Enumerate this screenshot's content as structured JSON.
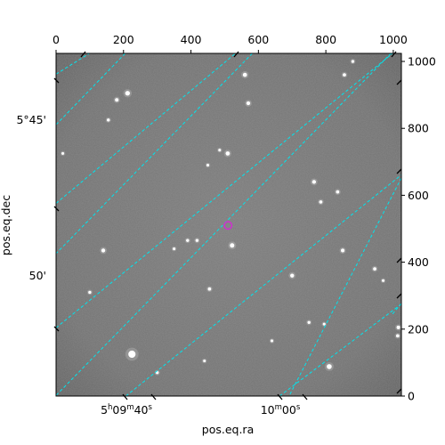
{
  "figure": {
    "x_axis_label": "pos.eq.ra",
    "y_axis_label": "pos.eq.dec",
    "top_ticks": [
      "0",
      "200",
      "400",
      "600",
      "800",
      "1000"
    ],
    "right_ticks": [
      "0",
      "200",
      "400",
      "600",
      "800",
      "1000"
    ],
    "ra_ticks": [
      {
        "pre": "5",
        "h": "h",
        "mid": "09",
        "m": "m",
        "post": "40",
        "s": "s"
      },
      {
        "pre": "10",
        "h": "",
        "mid": "",
        "m": "m",
        "post": "00",
        "s": "s"
      }
    ],
    "dec_ticks": [
      "5°45'",
      "50'"
    ],
    "grid_color": "#00e5ee",
    "marker_color": "#cc33cc"
  },
  "chart_data": {
    "type": "scatter",
    "title": "",
    "xlabel": "pos.eq.ra",
    "ylabel": "pos.eq.dec",
    "pixel_xlim": [
      0,
      1024
    ],
    "pixel_ylim": [
      0,
      1024
    ],
    "grid": true,
    "background": "grayscale sky image",
    "stars": [
      {
        "x": 225,
        "y": 125,
        "mag": 1.0
      },
      {
        "x": 810,
        "y": 88,
        "mag": 0.6
      },
      {
        "x": 522,
        "y": 450,
        "mag": 0.5
      },
      {
        "x": 140,
        "y": 435,
        "mag": 0.4
      },
      {
        "x": 509,
        "y": 725,
        "mag": 0.45
      },
      {
        "x": 212,
        "y": 905,
        "mag": 0.55
      },
      {
        "x": 180,
        "y": 885,
        "mag": 0.35
      },
      {
        "x": 560,
        "y": 960,
        "mag": 0.45
      },
      {
        "x": 570,
        "y": 875,
        "mag": 0.4
      },
      {
        "x": 765,
        "y": 640,
        "mag": 0.4
      },
      {
        "x": 700,
        "y": 360,
        "mag": 0.4
      },
      {
        "x": 850,
        "y": 435,
        "mag": 0.35
      },
      {
        "x": 1015,
        "y": 205,
        "mag": 0.35
      },
      {
        "x": 1013,
        "y": 180,
        "mag": 0.3
      },
      {
        "x": 945,
        "y": 380,
        "mag": 0.3
      },
      {
        "x": 785,
        "y": 580,
        "mag": 0.3
      },
      {
        "x": 835,
        "y": 610,
        "mag": 0.3
      },
      {
        "x": 455,
        "y": 320,
        "mag": 0.3
      },
      {
        "x": 418,
        "y": 465,
        "mag": 0.25
      },
      {
        "x": 390,
        "y": 465,
        "mag": 0.25
      },
      {
        "x": 300,
        "y": 70,
        "mag": 0.25
      },
      {
        "x": 100,
        "y": 310,
        "mag": 0.25
      },
      {
        "x": 855,
        "y": 960,
        "mag": 0.3
      },
      {
        "x": 880,
        "y": 1000,
        "mag": 0.25
      },
      {
        "x": 750,
        "y": 220,
        "mag": 0.25
      },
      {
        "x": 795,
        "y": 215,
        "mag": 0.2
      },
      {
        "x": 155,
        "y": 825,
        "mag": 0.25
      },
      {
        "x": 350,
        "y": 440,
        "mag": 0.2
      },
      {
        "x": 440,
        "y": 105,
        "mag": 0.2
      },
      {
        "x": 640,
        "y": 165,
        "mag": 0.2
      },
      {
        "x": 20,
        "y": 725,
        "mag": 0.2
      },
      {
        "x": 970,
        "y": 345,
        "mag": 0.2
      },
      {
        "x": 450,
        "y": 690,
        "mag": 0.2
      },
      {
        "x": 485,
        "y": 735,
        "mag": 0.2
      }
    ],
    "target_marker": {
      "x": 510,
      "y": 510
    },
    "grid_lines": [
      {
        "x1": 0,
        "y1": 962,
        "x2": 99,
        "y2": 1024
      },
      {
        "x1": 0,
        "y1": 576,
        "x2": 532,
        "y2": 1024
      },
      {
        "x1": 0,
        "y1": 204,
        "x2": 998,
        "y2": 1024
      },
      {
        "x1": 207,
        "y1": 0,
        "x2": 1024,
        "y2": 661
      },
      {
        "x1": 663,
        "y1": 0,
        "x2": 1024,
        "y2": 275
      },
      {
        "x1": 205,
        "y1": 1024,
        "x2": 0,
        "y2": 811
      },
      {
        "x1": 582,
        "y1": 1024,
        "x2": 0,
        "y2": 426
      },
      {
        "x1": 993,
        "y1": 1024,
        "x2": 0,
        "y2": 2
      },
      {
        "x1": 1024,
        "y1": 652,
        "x2": 691,
        "y2": 0
      },
      {
        "x1": 1024,
        "y1": 277,
        "x2": 997,
        "y2": 244
      }
    ]
  }
}
